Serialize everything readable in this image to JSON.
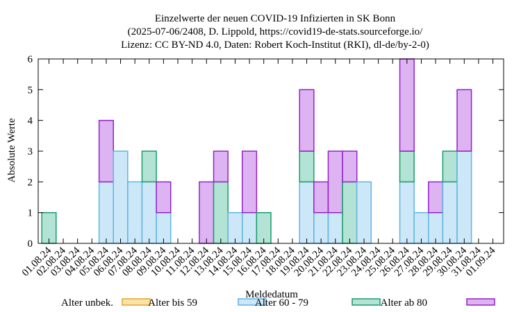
{
  "chart_data": {
    "type": "bar",
    "stacked": true,
    "title": [
      "Einzelwerte der neuen COVID-19 Infizierten in SK Bonn",
      "(2025-07-06/2408, D. Lippold, https://covid19-de-stats.sourceforge.io/",
      "Lizenz: CC BY-ND 4.0, Daten: Robert Koch-Institut (RKI), dl-de/by-2-0)"
    ],
    "xlabel": "Meldedatum",
    "ylabel": "Absolute Werte",
    "ylim": [
      0,
      6
    ],
    "yticks": [
      0,
      1,
      2,
      3,
      4,
      5,
      6
    ],
    "categories": [
      "01.08.24",
      "02.08.24",
      "03.08.24",
      "04.08.24",
      "05.08.24",
      "06.08.24",
      "07.08.24",
      "08.08.24",
      "09.08.24",
      "10.08.24",
      "11.08.24",
      "12.08.24",
      "13.08.24",
      "14.08.24",
      "15.08.24",
      "16.08.24",
      "17.08.24",
      "18.08.24",
      "19.08.24",
      "20.08.24",
      "21.08.24",
      "22.08.24",
      "23.08.24",
      "24.08.24",
      "25.08.24",
      "26.08.24",
      "27.08.24",
      "28.08.24",
      "29.08.24",
      "30.08.24",
      "31.08.24",
      "01.09.24"
    ],
    "series": [
      {
        "name": "Alter unbek.",
        "fill": "#fbe3a8",
        "stroke": "#e0a52a",
        "values": [
          0,
          0,
          0,
          0,
          0,
          0,
          0,
          0,
          0,
          0,
          0,
          0,
          0,
          0,
          0,
          0,
          0,
          0,
          0,
          0,
          0,
          0,
          0,
          0,
          0,
          0,
          0,
          0,
          0,
          0,
          0,
          0
        ]
      },
      {
        "name": "Alter bis 59",
        "fill": "#cce8f8",
        "stroke": "#5db4e0",
        "values": [
          0,
          0,
          0,
          0,
          2,
          3,
          2,
          2,
          1,
          0,
          0,
          0,
          0,
          1,
          1,
          0,
          0,
          0,
          2,
          1,
          1,
          0,
          2,
          0,
          0,
          2,
          1,
          1,
          2,
          3,
          0,
          0
        ]
      },
      {
        "name": "Alter 60 - 79",
        "fill": "#b2e3d4",
        "stroke": "#1a9a6a",
        "values": [
          1,
          0,
          0,
          0,
          0,
          0,
          0,
          1,
          0,
          0,
          0,
          0,
          2,
          0,
          0,
          1,
          0,
          0,
          1,
          0,
          0,
          2,
          0,
          0,
          0,
          1,
          0,
          0,
          1,
          0,
          0,
          0
        ]
      },
      {
        "name": "Alter ab 80",
        "fill": "#ddb3f2",
        "stroke": "#9420c8",
        "values": [
          0,
          0,
          0,
          0,
          2,
          0,
          0,
          0,
          1,
          0,
          0,
          2,
          1,
          0,
          2,
          0,
          0,
          0,
          2,
          1,
          2,
          1,
          0,
          0,
          0,
          3,
          0,
          1,
          0,
          2,
          0,
          0
        ]
      }
    ],
    "legend_position": "bottom"
  }
}
